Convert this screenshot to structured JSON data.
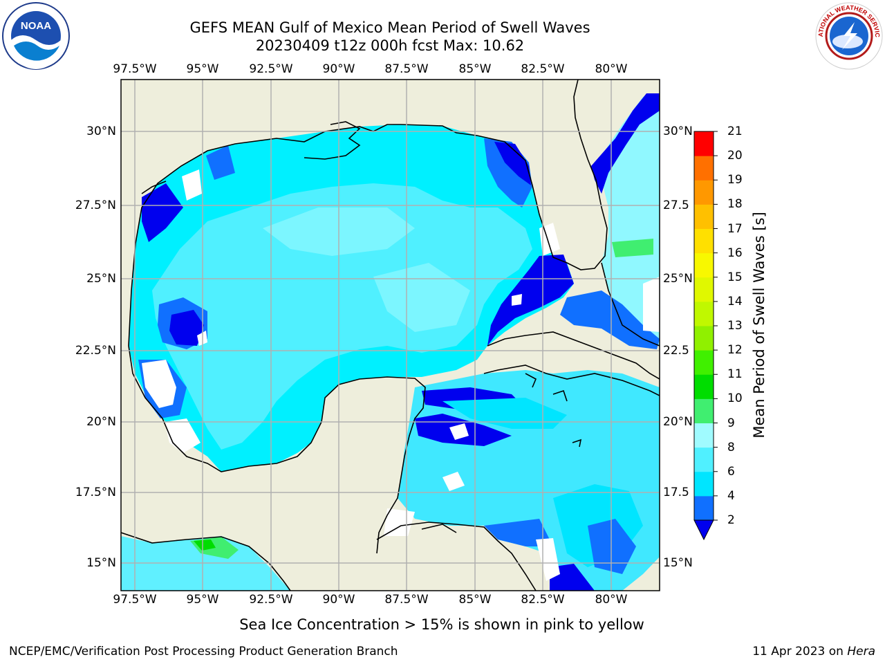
{
  "title_line1": "GEFS MEAN Gulf of Mexico Mean Period of Swell Waves",
  "title_line2": "20230409 t12z 000h fcst   Max: 10.62",
  "x_ticks": [
    "97.5°W",
    "95°W",
    "92.5°W",
    "90°W",
    "87.5°W",
    "85°W",
    "82.5°W",
    "80°W"
  ],
  "y_ticks_left": [
    "30°N",
    "27.5°N",
    "25°N",
    "22.5°N",
    "20°N",
    "17.5°N",
    "15°N"
  ],
  "y_ticks_right": [
    "30°N",
    "27.5",
    "25°N",
    "22.5",
    "20°N",
    "17.5",
    "15°N"
  ],
  "colorbar": {
    "label": "Mean Period of Swell Waves [s]",
    "ticks": [
      "2",
      "4",
      "6",
      "8",
      "9",
      "10",
      "11",
      "12",
      "13",
      "14",
      "15",
      "16",
      "17",
      "18",
      "19",
      "20",
      "21"
    ],
    "colors": [
      "#1070ff",
      "#00e5ff",
      "#50f0ff",
      "#a0fbff",
      "#40ee70",
      "#00dd00",
      "#40f000",
      "#90f000",
      "#c0f800",
      "#e0f800",
      "#f8f800",
      "#ffe000",
      "#ffc000",
      "#ff9800",
      "#ff7000",
      "#ff4000",
      "#ff0000"
    ],
    "under_color": "#0000ee"
  },
  "ice_note": "Sea Ice Concentration > 15% is shown in pink to yellow",
  "footer_left": "NCEP/EMC/Verification Post Processing Product Generation Branch",
  "footer_right": {
    "date": "11 Apr 2023 on",
    "host": "Hera"
  },
  "colors": {
    "land": "#eeeedc",
    "grid": "#b0b0b0"
  },
  "logos": {
    "left": "noaa-logo",
    "right": "nws-logo",
    "left_text": "NOAA",
    "right_text": "NATIONAL WEATHER SERVICE"
  }
}
